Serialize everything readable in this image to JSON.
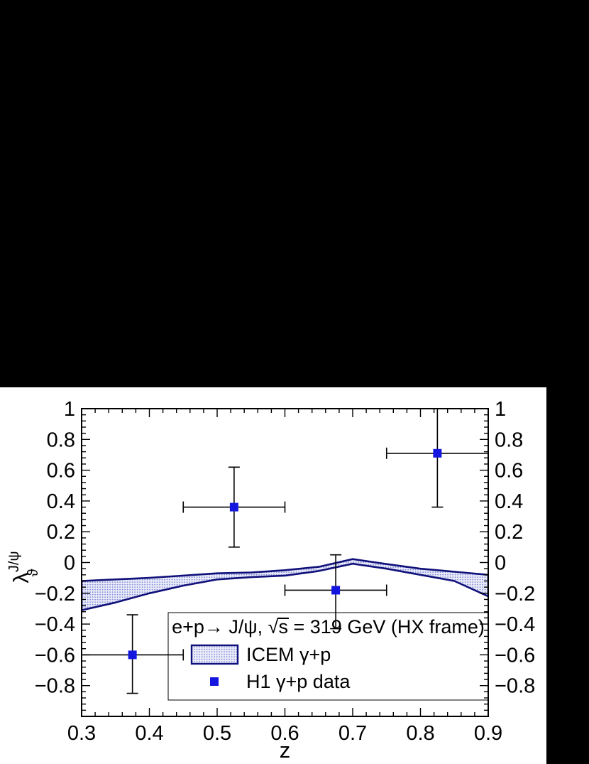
{
  "page": {
    "background_color": "#000000",
    "plot_background_color": "#ffffff"
  },
  "chart_data": {
    "type": "band+scatter",
    "title": "",
    "xlabel": "z",
    "ylabel": {
      "base": "λ",
      "sup": "J/ψ",
      "sub": "ϑ"
    },
    "xlim": [
      0.3,
      0.9
    ],
    "ylim": [
      -1.0,
      1.0
    ],
    "grid": false,
    "x_ticks": {
      "values": [
        0.3,
        0.4,
        0.5,
        0.6,
        0.7,
        0.8,
        0.9
      ],
      "labels": [
        "0.3",
        "0.4",
        "0.5",
        "0.6",
        "0.7",
        "0.8",
        "0.9"
      ],
      "minor_step": 0.02
    },
    "y_ticks": {
      "values": [
        1,
        0.8,
        0.6,
        0.4,
        0.2,
        0,
        -0.2,
        -0.4,
        -0.6,
        -0.8
      ],
      "labels": [
        "1",
        "0.8",
        "0.6",
        "0.4",
        "0.2",
        "0",
        "−0.2",
        "−0.4",
        "−0.6",
        "−0.8"
      ],
      "minor_step": 0.04,
      "mirror_right": true
    },
    "legend": {
      "position": "bottom-center",
      "header": {
        "pre": "e+p→ J/ψ, ",
        "sqrt_arg": "s",
        "post": " = 319 GeV (HX frame)"
      },
      "entries": [
        {
          "type": "band",
          "label": "ICEM γ+p"
        },
        {
          "type": "marker",
          "label": "H1 γ+p data"
        }
      ]
    },
    "band": {
      "name": "ICEM γ+p",
      "z": [
        0.3,
        0.35,
        0.4,
        0.45,
        0.5,
        0.55,
        0.6,
        0.65,
        0.7,
        0.75,
        0.8,
        0.85,
        0.9
      ],
      "upper": [
        -0.12,
        -0.11,
        -0.1,
        -0.085,
        -0.07,
        -0.065,
        -0.05,
        -0.028,
        0.022,
        -0.01,
        -0.04,
        -0.06,
        -0.08
      ],
      "lower": [
        -0.31,
        -0.26,
        -0.2,
        -0.15,
        -0.11,
        -0.095,
        -0.085,
        -0.055,
        -0.008,
        -0.04,
        -0.08,
        -0.12,
        -0.22
      ]
    },
    "points": {
      "name": "H1 γ+p data",
      "data": [
        {
          "z": 0.375,
          "z_lo": 0.3,
          "z_hi": 0.45,
          "y": -0.6,
          "y_lo": -0.85,
          "y_hi": -0.34
        },
        {
          "z": 0.525,
          "z_lo": 0.45,
          "z_hi": 0.6,
          "y": 0.36,
          "y_lo": 0.1,
          "y_hi": 0.62
        },
        {
          "z": 0.675,
          "z_lo": 0.6,
          "z_hi": 0.75,
          "y": -0.18,
          "y_lo": -0.43,
          "y_hi": 0.05
        },
        {
          "z": 0.825,
          "z_lo": 0.75,
          "z_hi": 0.9,
          "y": 0.71,
          "y_lo": 0.36,
          "y_hi": 1.05
        }
      ]
    },
    "colors": {
      "marker": "#1515e0",
      "band_edge": "#10107a",
      "band_fill_dot": "#7f89d8",
      "band_fill_bg": "#e9ebf8",
      "error_bar": "#000000",
      "frame": "#000000",
      "text": "#000000"
    }
  }
}
